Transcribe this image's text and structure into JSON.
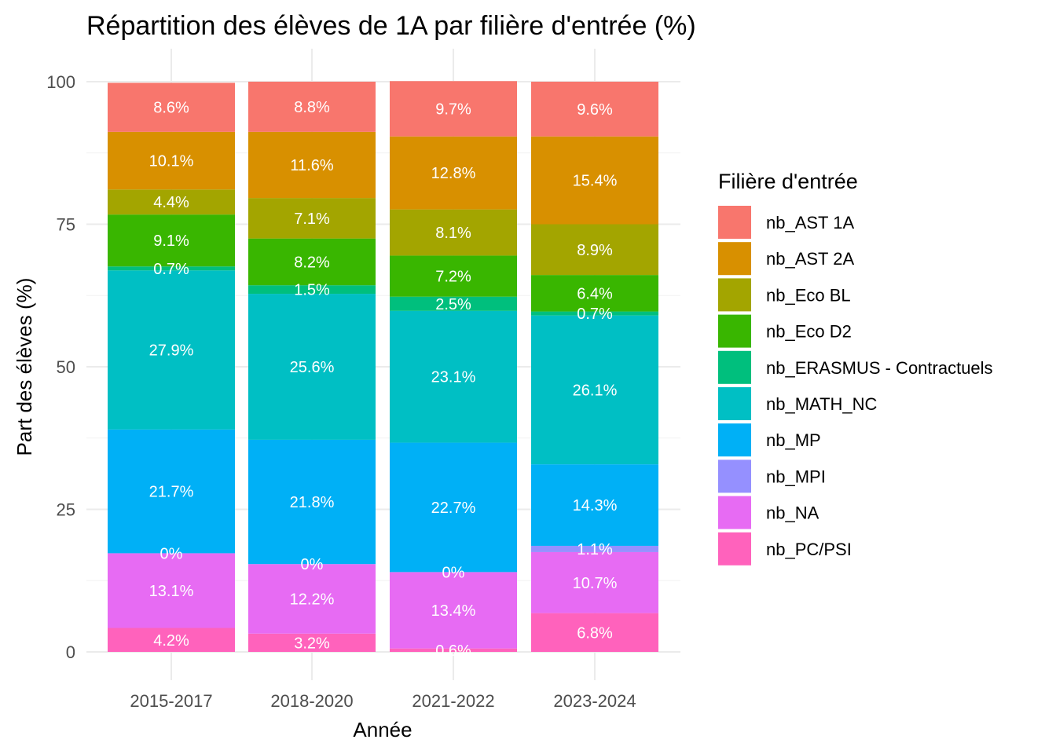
{
  "chart_data": {
    "type": "bar",
    "stacked": true,
    "title": "Répartition des élèves de 1A par filière d'entrée (%)",
    "xlabel": "Année",
    "ylabel": "Part des élèves (%)",
    "ylim": [
      0,
      100
    ],
    "yticks": [
      "0",
      "25",
      "50",
      "75",
      "100"
    ],
    "grid": true,
    "legend_title": "Filière d'entrée",
    "legend_position": "right",
    "categories": [
      "2015-2017",
      "2018-2020",
      "2021-2022",
      "2023-2024"
    ],
    "stack_order_bottom_to_top": [
      "nb_PC/PSI",
      "nb_NA",
      "nb_MPI",
      "nb_MP",
      "nb_MATH_NC",
      "nb_ERASMUS - Contractuels",
      "nb_Eco D2",
      "nb_Eco BL",
      "nb_AST 2A",
      "nb_AST 1A"
    ],
    "series": [
      {
        "name": "nb_AST 1A",
        "color": "#F8766D",
        "values": [
          8.6,
          8.8,
          9.7,
          9.6
        ],
        "labels": [
          "8.6%",
          "8.8%",
          "9.7%",
          "9.6%"
        ]
      },
      {
        "name": "nb_AST 2A",
        "color": "#D89000",
        "values": [
          10.1,
          11.6,
          12.8,
          15.4
        ],
        "labels": [
          "10.1%",
          "11.6%",
          "12.8%",
          "15.4%"
        ]
      },
      {
        "name": "nb_Eco BL",
        "color": "#A3A500",
        "values": [
          4.4,
          7.1,
          8.1,
          8.9
        ],
        "labels": [
          "4.4%",
          "7.1%",
          "8.1%",
          "8.9%"
        ]
      },
      {
        "name": "nb_Eco D2",
        "color": "#39B600",
        "values": [
          9.1,
          8.2,
          7.2,
          6.4
        ],
        "labels": [
          "9.1%",
          "8.2%",
          "7.2%",
          "6.4%"
        ]
      },
      {
        "name": "nb_ERASMUS - Contractuels",
        "color": "#00BF7D",
        "values": [
          0.7,
          1.5,
          2.5,
          0.7
        ],
        "labels": [
          "0.7%",
          "1.5%",
          "2.5%",
          "0.7%"
        ]
      },
      {
        "name": "nb_MATH_NC",
        "color": "#00BFC4",
        "values": [
          27.9,
          25.6,
          23.1,
          26.1
        ],
        "labels": [
          "27.9%",
          "25.6%",
          "23.1%",
          "26.1%"
        ]
      },
      {
        "name": "nb_MP",
        "color": "#00B0F6",
        "values": [
          21.7,
          21.8,
          22.7,
          14.3
        ],
        "labels": [
          "21.7%",
          "21.8%",
          "22.7%",
          "14.3%"
        ]
      },
      {
        "name": "nb_MPI",
        "color": "#9590FF",
        "values": [
          0,
          0,
          0,
          1.1
        ],
        "labels": [
          "0%",
          "0%",
          "0%",
          "1.1%"
        ]
      },
      {
        "name": "nb_NA",
        "color": "#E76BF3",
        "values": [
          13.1,
          12.2,
          13.4,
          10.7
        ],
        "labels": [
          "13.1%",
          "12.2%",
          "13.4%",
          "10.7%"
        ]
      },
      {
        "name": "nb_PC/PSI",
        "color": "#FF62BC",
        "values": [
          4.2,
          3.2,
          0.6,
          6.8
        ],
        "labels": [
          "4.2%",
          "3.2%",
          "0.6%",
          "6.8%"
        ]
      }
    ]
  }
}
